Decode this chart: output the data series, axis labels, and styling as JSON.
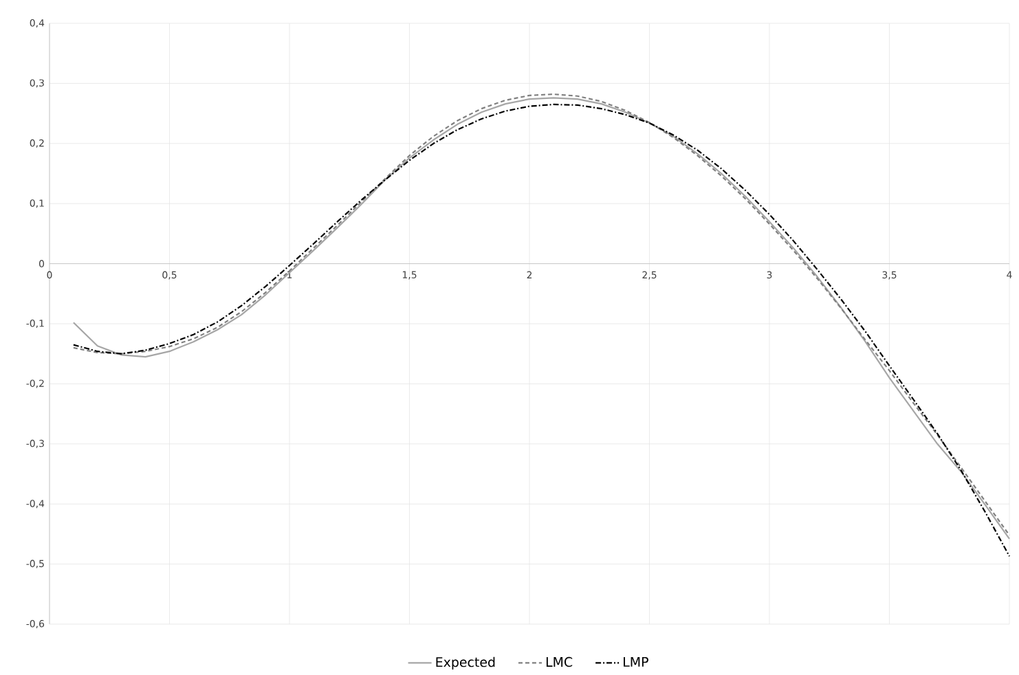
{
  "chart_data": {
    "type": "line",
    "xlim": [
      0,
      4
    ],
    "ylim": [
      -0.6,
      0.4
    ],
    "xticks": [
      0,
      {
        "value": 0.5,
        "label": "0,5"
      },
      1,
      {
        "value": 1.5,
        "label": "1,5"
      },
      2,
      {
        "value": 2.5,
        "label": "2,5"
      },
      3,
      {
        "value": 3.5,
        "label": "3,5"
      },
      4
    ],
    "yticks": [
      {
        "value": -0.6,
        "label": "-0,6"
      },
      {
        "value": -0.5,
        "label": "-0,5"
      },
      {
        "value": -0.4,
        "label": "-0,4"
      },
      {
        "value": -0.3,
        "label": "-0,3"
      },
      {
        "value": -0.2,
        "label": "-0,2"
      },
      {
        "value": -0.1,
        "label": "-0,1"
      },
      0,
      {
        "value": 0.1,
        "label": "0,1"
      },
      {
        "value": 0.2,
        "label": "0,2"
      },
      {
        "value": 0.3,
        "label": "0,3"
      },
      {
        "value": 0.4,
        "label": "0,4"
      }
    ],
    "x": [
      0.1,
      0.2,
      0.3,
      0.4,
      0.5,
      0.6,
      0.7,
      0.8,
      0.9,
      1.0,
      1.1,
      1.2,
      1.3,
      1.4,
      1.5,
      1.6,
      1.7,
      1.8,
      1.9,
      2.0,
      2.1,
      2.2,
      2.3,
      2.4,
      2.5,
      2.6,
      2.7,
      2.8,
      2.9,
      3.0,
      3.1,
      3.2,
      3.3,
      3.4,
      3.5,
      3.6,
      3.7,
      3.8,
      3.9,
      4.0
    ],
    "grid": true,
    "legend": "bottom",
    "marker": "none",
    "series": [
      {
        "name": "Expected",
        "color": "#a6a6a6",
        "line_style": "solid",
        "values": [
          -0.098,
          -0.137,
          -0.152,
          -0.155,
          -0.146,
          -0.13,
          -0.11,
          -0.085,
          -0.052,
          -0.015,
          0.022,
          0.06,
          0.099,
          0.14,
          0.176,
          0.206,
          0.232,
          0.252,
          0.266,
          0.274,
          0.276,
          0.274,
          0.266,
          0.252,
          0.234,
          0.212,
          0.183,
          0.15,
          0.112,
          0.07,
          0.026,
          -0.022,
          -0.074,
          -0.13,
          -0.19,
          -0.245,
          -0.3,
          -0.347,
          -0.402,
          -0.458
        ]
      },
      {
        "name": "LMC",
        "color": "#808080",
        "line_style": "dashed",
        "values": [
          -0.14,
          -0.148,
          -0.15,
          -0.146,
          -0.138,
          -0.125,
          -0.106,
          -0.08,
          -0.048,
          -0.012,
          0.026,
          0.064,
          0.103,
          0.142,
          0.18,
          0.212,
          0.238,
          0.258,
          0.272,
          0.28,
          0.282,
          0.279,
          0.27,
          0.255,
          0.235,
          0.21,
          0.18,
          0.146,
          0.108,
          0.066,
          0.022,
          -0.025,
          -0.075,
          -0.127,
          -0.178,
          -0.232,
          -0.285,
          -0.34,
          -0.396,
          -0.452
        ]
      },
      {
        "name": "LMP",
        "color": "#000000",
        "line_style": "dashdot",
        "values": [
          -0.135,
          -0.146,
          -0.15,
          -0.144,
          -0.133,
          -0.118,
          -0.097,
          -0.07,
          -0.038,
          -0.003,
          0.033,
          0.07,
          0.106,
          0.14,
          0.172,
          0.2,
          0.223,
          0.241,
          0.254,
          0.262,
          0.265,
          0.264,
          0.258,
          0.248,
          0.234,
          0.214,
          0.189,
          0.158,
          0.122,
          0.082,
          0.038,
          -0.01,
          -0.06,
          -0.113,
          -0.17,
          -0.226,
          -0.283,
          -0.345,
          -0.414,
          -0.487
        ]
      }
    ]
  }
}
